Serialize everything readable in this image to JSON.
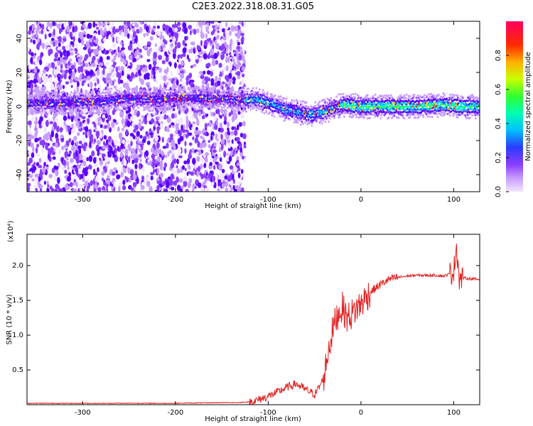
{
  "title": "C2E3.2022.318.08.31.G05",
  "colors": {
    "snr_line": "#e02020",
    "axes": "#000000",
    "spectrogram_gradient": [
      "#f2e6ff",
      "#c79cff",
      "#8a3cff",
      "#5a00ff",
      "#2a3cff",
      "#00bfff",
      "#00ffb0",
      "#30ff30",
      "#c8ff00",
      "#ffb000",
      "#ff2a00",
      "#ff0060"
    ]
  },
  "chart_data": [
    {
      "type": "heatmap",
      "title": "C2E3.2022.318.08.31.G05",
      "xlabel": "Height of straight line (km)",
      "ylabel": "Frequency (Hz)",
      "xlim": [
        -360,
        128
      ],
      "ylim": [
        -50,
        50
      ],
      "xticks": [
        -300,
        -200,
        -100,
        0,
        100
      ],
      "yticks": [
        -40,
        -20,
        0,
        20,
        40
      ],
      "colorbar": {
        "label": "Normalized spectral amplitude",
        "range": [
          0,
          1
        ],
        "ticks": [
          "0.0",
          "0.2",
          "0.4",
          "0.6",
          "0.8"
        ]
      },
      "ridge": {
        "x": [
          -330,
          -280,
          -250,
          -220,
          -200,
          -170,
          -130,
          -110,
          -95,
          -80,
          -70,
          -55,
          -45,
          -35,
          -25,
          -15,
          0,
          30,
          60,
          90,
          110,
          128
        ],
        "frequency_hz": [
          2,
          3,
          5,
          4,
          5,
          5,
          4,
          4,
          1,
          -2,
          -3,
          -5,
          -4,
          -2,
          0,
          1,
          0,
          0,
          0,
          1,
          0,
          0
        ]
      },
      "noisy_region_x": [
        -360,
        -125
      ]
    },
    {
      "type": "line",
      "xlabel": "Height of straight line (km)",
      "ylabel": "SNR (10 * v/v)",
      "y_scale_note": "(x10⁴)",
      "xlim": [
        -360,
        128
      ],
      "ylim": [
        0,
        2.45
      ],
      "xticks": [
        -300,
        -200,
        -100,
        0,
        100
      ],
      "yticks": [
        "0.5",
        "1.0",
        "1.5",
        "2.0"
      ],
      "series": [
        {
          "x": [
            -360,
            -300,
            -250,
            -200,
            -150,
            -130,
            -115,
            -100,
            -90,
            -80,
            -70,
            -60,
            -50,
            -45,
            -40,
            -35,
            -30,
            -25,
            -20,
            -15,
            -10,
            -5,
            0,
            10,
            20,
            30,
            40,
            50,
            60,
            70,
            80,
            90,
            95,
            100,
            103,
            106,
            110,
            120,
            128
          ],
          "y": [
            0.02,
            0.02,
            0.02,
            0.02,
            0.03,
            0.03,
            0.05,
            0.12,
            0.18,
            0.25,
            0.3,
            0.22,
            0.15,
            0.25,
            0.4,
            0.8,
            1.1,
            1.3,
            1.4,
            1.25,
            1.3,
            1.38,
            1.45,
            1.62,
            1.72,
            1.8,
            1.83,
            1.85,
            1.86,
            1.86,
            1.86,
            1.85,
            1.88,
            1.92,
            2.3,
            1.8,
            1.82,
            1.81,
            1.8
          ]
        }
      ]
    }
  ]
}
